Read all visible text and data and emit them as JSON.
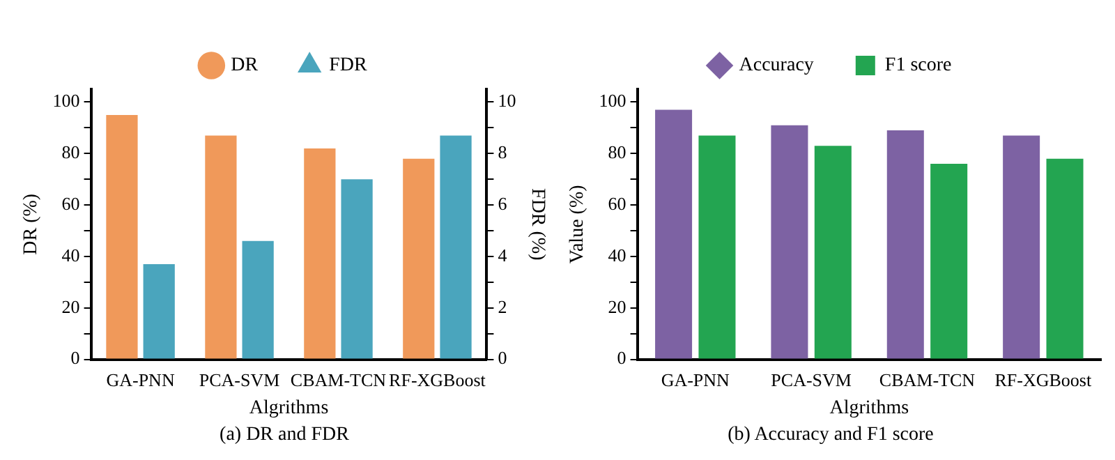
{
  "chart_data": [
    {
      "type": "bar",
      "title": "(a) DR and FDR",
      "xlabel": "Algrithms",
      "ylabel": "DR (%)",
      "y2label": "FDR (%)",
      "categories": [
        "GA-PNN",
        "PCA-SVM",
        "CBAM-TCN",
        "RF-XGBoost"
      ],
      "series": [
        {
          "name": "DR",
          "color": "#f0995a",
          "values": [
            95,
            87,
            82,
            78
          ]
        },
        {
          "name": "FDR",
          "color": "#4aa5bd",
          "values": [
            3.7,
            4.6,
            7.0,
            8.7
          ],
          "axis": "y2"
        }
      ],
      "ylim": [
        0,
        105
      ],
      "yticks": [
        0,
        {
          "value": 10,
          "label": null
        },
        20,
        {
          "value": 30,
          "label": null
        },
        40,
        {
          "value": 50,
          "label": null
        },
        60,
        {
          "value": 70,
          "label": null
        },
        80,
        {
          "value": 90,
          "label": null
        },
        100
      ],
      "y2lim": [
        0,
        10.5
      ],
      "y2ticks": [
        0,
        {
          "value": 1,
          "label": null
        },
        2,
        {
          "value": 3,
          "label": null
        },
        4,
        {
          "value": 5,
          "label": null
        },
        6,
        {
          "value": 7,
          "label": null
        },
        8,
        {
          "value": 9,
          "label": null
        },
        10
      ],
      "legend": "top",
      "grid": false
    },
    {
      "type": "bar",
      "title": "(b) Accuracy and F1 score",
      "xlabel": "Algrithms",
      "ylabel": "Value (%)",
      "categories": [
        "GA-PNN",
        "PCA-SVM",
        "CBAM-TCN",
        "RF-XGBoost"
      ],
      "series": [
        {
          "name": "Accuracy",
          "color": "#7d62a3",
          "values": [
            97,
            91,
            89,
            87
          ]
        },
        {
          "name": "F1 score",
          "color": "#23a551",
          "values": [
            87,
            83,
            76,
            78
          ]
        }
      ],
      "ylim": [
        0,
        105
      ],
      "yticks": [
        0,
        {
          "value": 10,
          "label": null
        },
        20,
        {
          "value": 30,
          "label": null
        },
        40,
        {
          "value": 50,
          "label": null
        },
        60,
        {
          "value": 70,
          "label": null
        },
        80,
        {
          "value": 90,
          "label": null
        },
        100
      ],
      "legend": "top",
      "grid": false
    }
  ]
}
